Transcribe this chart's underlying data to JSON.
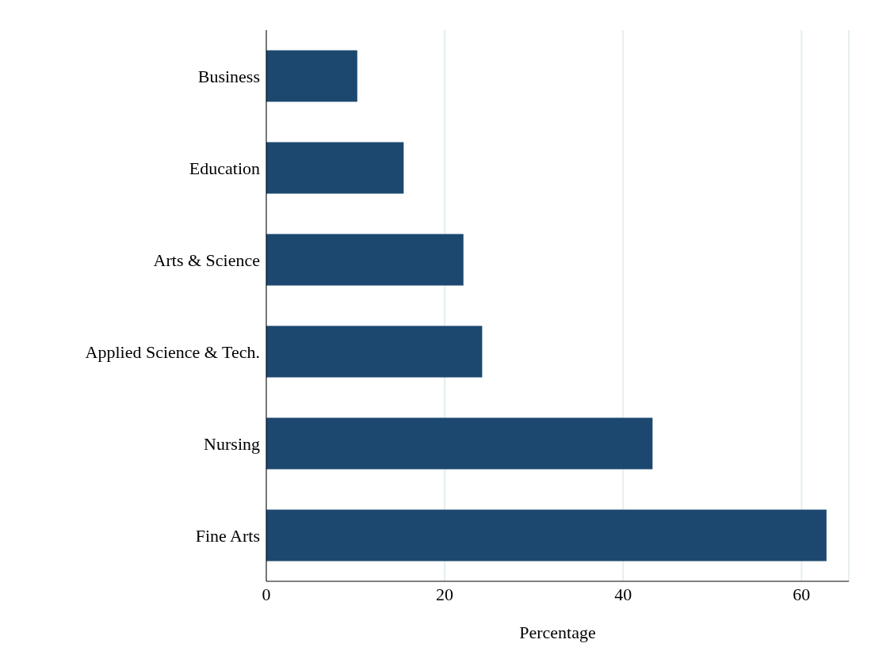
{
  "chart_data": {
    "type": "bar",
    "orientation": "horizontal",
    "xlabel": "Percentage",
    "categories": [
      "Business",
      "Education",
      "Arts & Science",
      "Applied Science & Tech.",
      "Nursing",
      "Fine Arts"
    ],
    "values": [
      10.2,
      15.4,
      22.1,
      24.2,
      43.3,
      62.8
    ],
    "color": "#1c4870",
    "xlim": [
      0,
      65.3
    ],
    "xticks": [
      0,
      20,
      40,
      60
    ],
    "grid": "x",
    "legend": false
  }
}
